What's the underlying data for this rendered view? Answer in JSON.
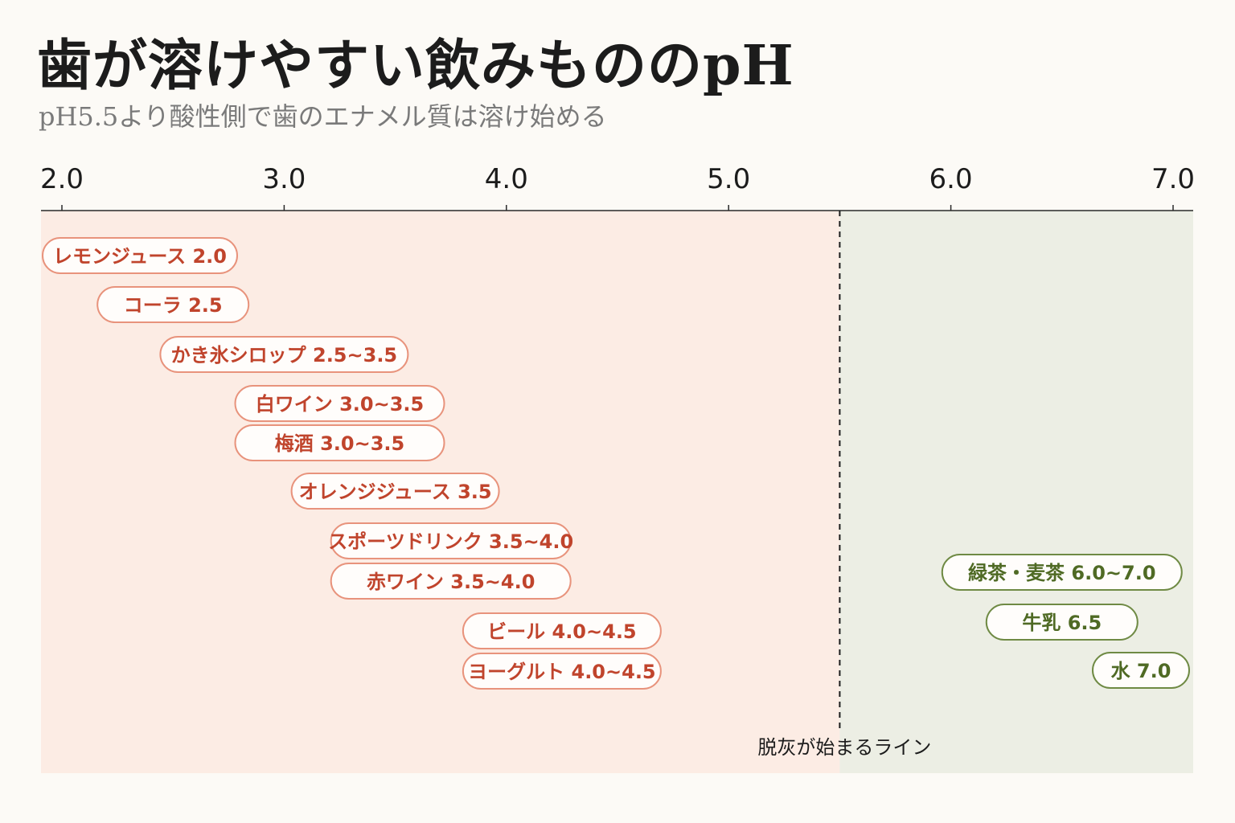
{
  "title": "歯が溶けやすい飲みもののpH",
  "subtitle": "pH5.5より酸性側で歯のエナメル質は溶け始める",
  "colors": {
    "acid_bg": "#fcece4",
    "safe_bg": "#eceee4",
    "acid_text": "#c0442c",
    "acid_border": "#e8937c",
    "safe_text": "#4f6a24",
    "safe_border": "#6f8a44",
    "pill_fill": "#fffdfb"
  },
  "chart_data": {
    "type": "range-pills",
    "x_axis": {
      "range": [
        2.0,
        7.0
      ],
      "ticks": [
        2.0,
        3.0,
        4.0,
        5.0,
        6.0,
        7.0
      ],
      "tick_labels": [
        "2.0",
        "3.0",
        "4.0",
        "5.0",
        "6.0",
        "7.0"
      ]
    },
    "threshold": {
      "value": 5.5,
      "label": "脱灰が始まるライン"
    },
    "series": [
      {
        "label": "レモンジュース 2.0",
        "min": 2.0,
        "max": 2.0,
        "group": "acid"
      },
      {
        "label": "コーラ 2.5",
        "min": 2.5,
        "max": 2.5,
        "group": "acid"
      },
      {
        "label": "かき氷シロップ 2.5~3.5",
        "min": 2.5,
        "max": 3.5,
        "group": "acid"
      },
      {
        "label": "白ワイン 3.0~3.5",
        "min": 3.0,
        "max": 3.5,
        "group": "acid"
      },
      {
        "label": "梅酒 3.0~3.5",
        "min": 3.0,
        "max": 3.5,
        "group": "acid"
      },
      {
        "label": "オレンジジュース 3.5",
        "min": 3.5,
        "max": 3.5,
        "group": "acid"
      },
      {
        "label": "スポーツドリンク 3.5~4.0",
        "min": 3.5,
        "max": 4.0,
        "group": "acid"
      },
      {
        "label": "赤ワイン 3.5~4.0",
        "min": 3.5,
        "max": 4.0,
        "group": "acid"
      },
      {
        "label": "ビール 4.0~4.5",
        "min": 4.0,
        "max": 4.5,
        "group": "acid"
      },
      {
        "label": "ヨーグルト 4.0~4.5",
        "min": 4.0,
        "max": 4.5,
        "group": "acid"
      },
      {
        "label": "緑茶・麦茶 6.0~7.0",
        "min": 6.0,
        "max": 7.0,
        "group": "safe"
      },
      {
        "label": "牛乳 6.5",
        "min": 6.5,
        "max": 6.5,
        "group": "safe"
      },
      {
        "label": "水 7.0",
        "min": 7.0,
        "max": 7.0,
        "group": "safe"
      }
    ]
  }
}
